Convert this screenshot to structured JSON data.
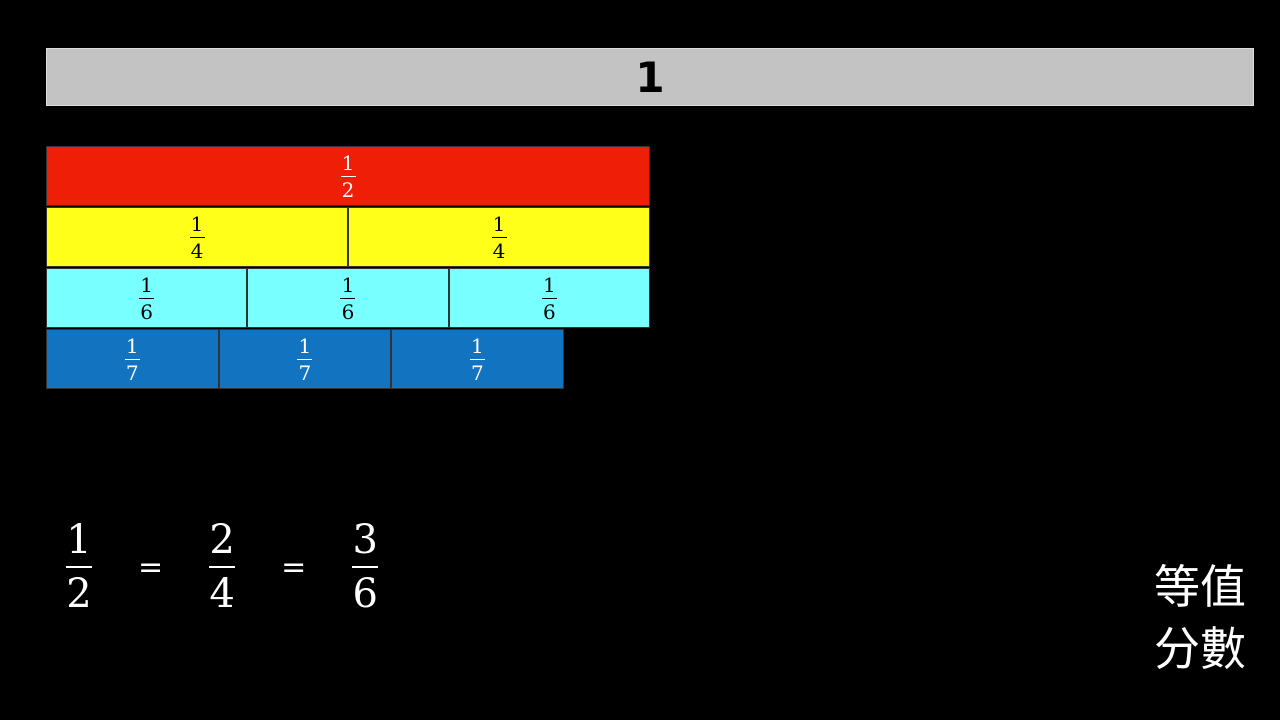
{
  "whole": {
    "label": "1",
    "color": "#c3c3c3"
  },
  "rows": [
    {
      "color": "#ee1e07",
      "pieces": [
        {
          "num": "1",
          "den": "2"
        }
      ]
    },
    {
      "color": "#ffff1a",
      "pieces": [
        {
          "num": "1",
          "den": "4"
        },
        {
          "num": "1",
          "den": "4"
        }
      ]
    },
    {
      "color": "#78ffff",
      "pieces": [
        {
          "num": "1",
          "den": "6"
        },
        {
          "num": "1",
          "den": "6"
        },
        {
          "num": "1",
          "den": "6"
        }
      ]
    },
    {
      "color": "#1274c0",
      "pieces": [
        {
          "num": "1",
          "den": "7"
        },
        {
          "num": "1",
          "den": "7"
        },
        {
          "num": "1",
          "den": "7"
        }
      ]
    }
  ],
  "equation": {
    "fractions": [
      {
        "num": "1",
        "den": "2"
      },
      {
        "num": "2",
        "den": "4"
      },
      {
        "num": "3",
        "den": "6"
      }
    ],
    "sign": "="
  },
  "title": {
    "line1": "等值",
    "line2": "分數"
  }
}
